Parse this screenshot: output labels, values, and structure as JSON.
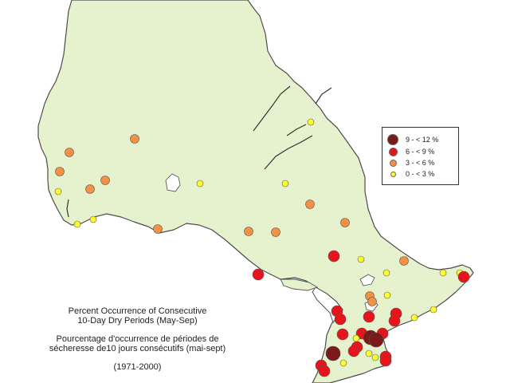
{
  "legend": {
    "items": [
      {
        "label": "9 - < 12 %",
        "color": "#7a1a1a"
      },
      {
        "label": "6 - < 9 %",
        "color": "#e8141b"
      },
      {
        "label": "3 - < 6 %",
        "color": "#f39244"
      },
      {
        "label": "0 - < 3 %",
        "color": "#ffff2a"
      }
    ]
  },
  "caption": {
    "en_line1": "Percent Occurrence of Consecutive",
    "en_line2": "10-Day Dry Periods  (May-Sep)",
    "fr_line1": "Pourcentage d'occurrence de périodes de",
    "fr_line2": "sécheresse de10 jours consécutifs (mai-sept)",
    "period": "(1971-2000)"
  },
  "colors": {
    "land": "#e6f1cd",
    "water": "#ffffff",
    "outline": "#4d4d4d"
  }
}
